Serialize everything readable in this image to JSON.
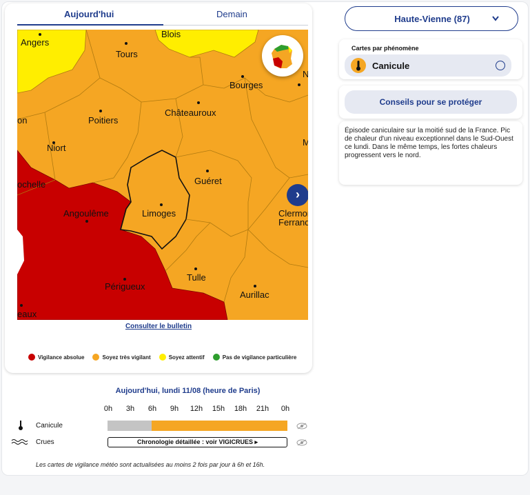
{
  "tabs": [
    {
      "label": "Aujourd'hui",
      "active": true
    },
    {
      "label": "Demain",
      "active": false
    }
  ],
  "map": {
    "cities": [
      {
        "name": "Angers"
      },
      {
        "name": "Blois"
      },
      {
        "name": "Tours"
      },
      {
        "name": "Bourges"
      },
      {
        "name": "Poitiers"
      },
      {
        "name": "Châteauroux"
      },
      {
        "name": "Niort"
      },
      {
        "name": "Guéret"
      },
      {
        "name": "Angoulême"
      },
      {
        "name": "Limoges"
      },
      {
        "name": "Périgueux"
      },
      {
        "name": "Tulle"
      },
      {
        "name": "Aurillac"
      },
      {
        "name": "Clermont-"
      },
      {
        "name": "Ferrand"
      },
      {
        "name": "on"
      },
      {
        "name": "ochelle"
      },
      {
        "name": "N"
      },
      {
        "name": "M"
      },
      {
        "name": "eaux"
      }
    ],
    "bulletin_link": "Consulter le bulletin"
  },
  "legend": [
    {
      "label": "Vigilance absolue",
      "color": "#c80000"
    },
    {
      "label": "Soyez très vigilant",
      "color": "#f5a623"
    },
    {
      "label": "Soyez attentif",
      "color": "#ffee00"
    },
    {
      "label": "Pas de vigilance particulière",
      "color": "#2e9e2e"
    }
  ],
  "department": {
    "label": "Haute-Vienne (87)"
  },
  "phenomena": {
    "title": "Cartes par phénomène",
    "selected": "Canicule"
  },
  "advice_button": "Conseils pour se protéger",
  "description": "Épisode caniculaire sur la moitié sud de la France. Pic de chaleur d'un niveau exceptionnel dans le Sud-Ouest ce lundi. Dans le même temps, les fortes chaleurs progressent vers le nord.",
  "timeline": {
    "title": "Aujourd'hui, lundi 11/08 (heure de Paris)",
    "hours": [
      "0h",
      "3h",
      "6h",
      "9h",
      "12h",
      "15h",
      "18h",
      "21h",
      "0h"
    ],
    "rows": [
      {
        "label": "Canicule",
        "segments": [
          {
            "level": "Pas de vigilance",
            "color": "#c4c4c4",
            "from": "0h",
            "to": "6h"
          },
          {
            "level": "Soyez très vigilant",
            "color": "#f5a623",
            "from": "6h",
            "to": "0h"
          }
        ]
      },
      {
        "label": "Crues",
        "link": "Chronologie détaillée : voir VIGICRUES"
      }
    ]
  },
  "footnote": "Les cartes de vigilance météo sont actualisées au moins 2 fois par jour à 6h et 16h.",
  "colors": {
    "accent": "#1f3c8c",
    "red": "#c80000",
    "orange": "#f5a623",
    "yellow": "#ffee00"
  }
}
